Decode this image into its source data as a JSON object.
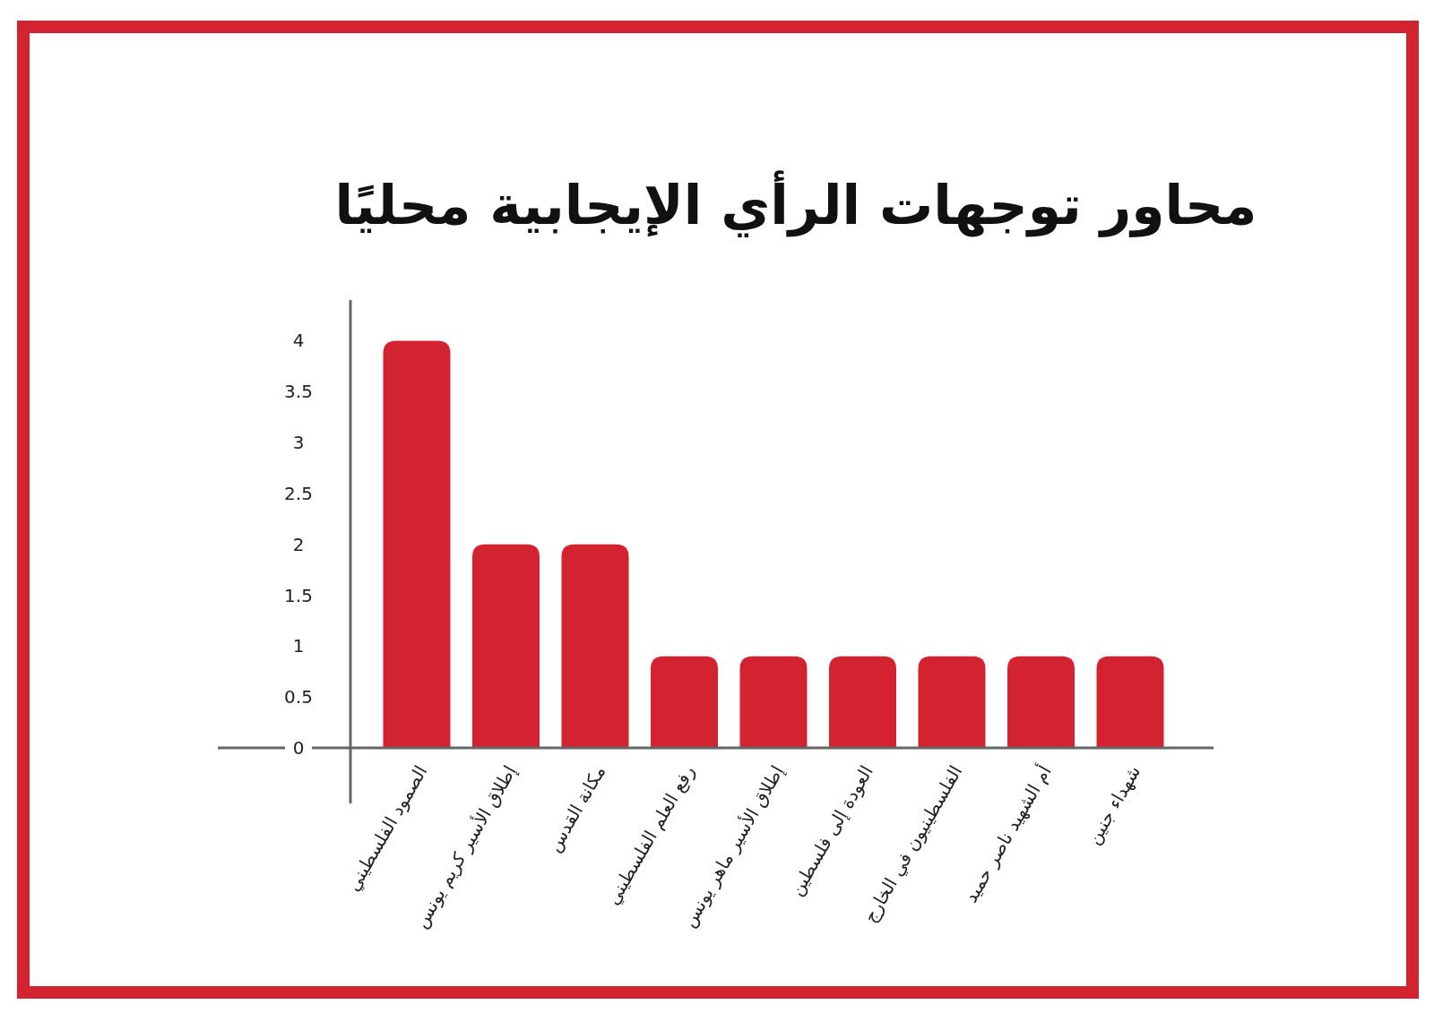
{
  "chart_data": {
    "type": "bar",
    "title": "محاور توجهات الرأي الإيجابية محليًا",
    "categories": [
      "الصمود الفلسطيني",
      "إطلاق الأسير كريم يونس",
      "مكانة القدس",
      "رفع العلم الفلسطيني",
      "إطلاق الأسير ماهر يونس",
      "العودة إلى فلسطين",
      "الفلسطينيون في الخارج",
      "أم الشهيد ناصر حميد",
      "شهداء جنين"
    ],
    "values": [
      4,
      2,
      2,
      0.9,
      0.9,
      0.9,
      0.9,
      0.9,
      0.9
    ],
    "color": "#d42330",
    "ylim": [
      0,
      4.4
    ],
    "yticks": [
      0,
      0.5,
      1,
      1.5,
      2,
      2.5,
      3,
      3.5,
      4
    ],
    "grid": false
  }
}
